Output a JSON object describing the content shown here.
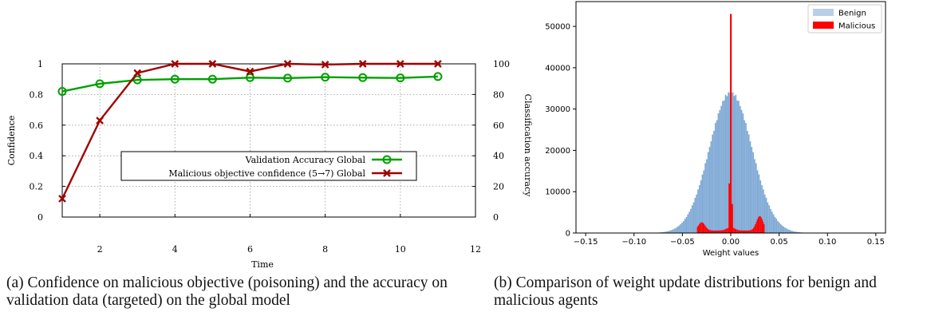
{
  "charts": [
    {
      "id": "a",
      "type": "line",
      "xlabel": "Time",
      "ylabel_left": "Confidence",
      "ylabel_right": "Classification accuracy",
      "x_ticks": [
        2,
        4,
        6,
        8,
        10,
        12
      ],
      "y_left_ticks": [
        0,
        0.2,
        0.4,
        0.6,
        0.8,
        1
      ],
      "y_right_ticks": [
        0,
        20,
        40,
        60,
        80,
        100
      ],
      "xlim": [
        1,
        12
      ],
      "ylim_left": [
        0,
        1
      ],
      "ylim_right": [
        0,
        100
      ],
      "grid": true,
      "legend_placement": "center",
      "series": [
        {
          "name": "Validation Accuracy Global",
          "axis": "right",
          "color": "#00a000",
          "marker": "circle",
          "x": [
            1,
            2,
            3,
            4,
            5,
            6,
            7,
            8,
            9,
            10,
            11
          ],
          "values": [
            82,
            87,
            89.5,
            90,
            90,
            91,
            90.7,
            91.3,
            91,
            90.8,
            91.7
          ]
        },
        {
          "name": "Malicious objective confidence (5→7) Global",
          "axis": "left",
          "color": "#a00000",
          "marker": "x",
          "x": [
            1,
            2,
            3,
            4,
            5,
            6,
            7,
            8,
            9,
            10,
            11
          ],
          "values": [
            0.12,
            0.63,
            0.94,
            1.0,
            1.0,
            0.95,
            1.0,
            0.995,
            1.0,
            1.0,
            1.0
          ]
        }
      ]
    },
    {
      "id": "b",
      "type": "histogram",
      "xlabel": "Weight values",
      "x_tick_labels": [
        "−0.15",
        "−0.10",
        "−0.05",
        "0.00",
        "0.05",
        "0.10",
        "0.15"
      ],
      "x_tick_values": [
        -0.15,
        -0.1,
        -0.05,
        0.0,
        0.05,
        0.1,
        0.15
      ],
      "y_ticks": [
        0,
        10000,
        20000,
        30000,
        40000,
        50000
      ],
      "xlim": [
        -0.16,
        0.16
      ],
      "ylim": [
        0,
        56000
      ],
      "legend_placement": "top-right",
      "series": [
        {
          "name": "Benign",
          "color": "#7ba7d4",
          "legend_color": "#b9cfe7",
          "distribution": "normal",
          "mean": 0.0,
          "std": 0.022,
          "peak_count": 34000,
          "x_start": -0.15,
          "x_end": 0.15,
          "bin_width": 0.0015
        },
        {
          "name": "Malicious",
          "color": "#ff0000",
          "spike": {
            "x": 0.0,
            "count": 53000
          },
          "near_zero": {
            "x": [
              -0.0015,
              0.0015
            ],
            "values": [
              12000,
              7000
            ]
          },
          "shoulders": [
            {
              "x": -0.03,
              "count": 2000
            },
            {
              "x": 0.03,
              "count": 3500
            }
          ],
          "range": [
            -0.035,
            0.035
          ],
          "floor": 600
        }
      ]
    }
  ],
  "captions": {
    "a": "(a) Confidence on malicious objective (poisoning) and the accuracy on validation data (targeted) on the global model",
    "b": "(b) Comparison of weight update distributions for benign and malicious agents"
  }
}
